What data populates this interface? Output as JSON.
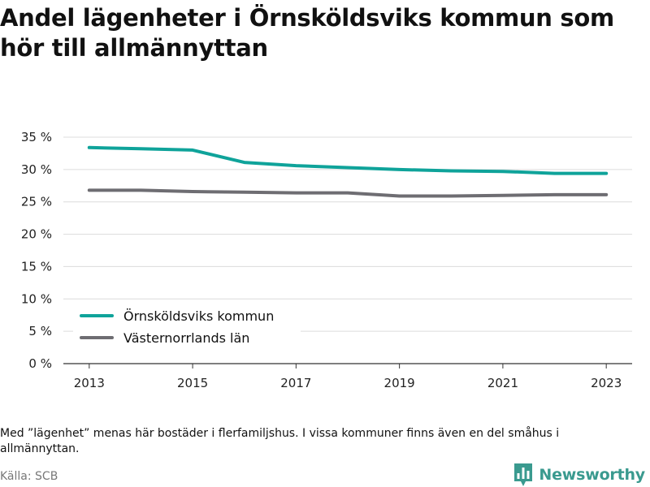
{
  "title": "Andel lägenheter i Örnsköldsviks kommun som hör till allmännyttan",
  "footnote": "Med ”lägenhet” menas här bostäder i flerfamiljshus. I vissa kommuner finns även en del småhus i allmännyttan.",
  "source": "Källa: SCB",
  "brand": {
    "name": "Newsworthy",
    "icon": "bar-chart-speech-bubble-icon",
    "color": "#3a9a8f"
  },
  "chart_data": {
    "type": "line",
    "title": "Andel lägenheter i Örnsköldsviks kommun som hör till allmännyttan",
    "xlabel": "",
    "ylabel": "",
    "x": [
      2013,
      2014,
      2015,
      2016,
      2017,
      2018,
      2019,
      2020,
      2021,
      2022,
      2023
    ],
    "xticks": [
      2013,
      2015,
      2017,
      2019,
      2021,
      2023
    ],
    "xtick_labels": [
      "2013",
      "2015",
      "2017",
      "2019",
      "2021",
      "2023"
    ],
    "xlim": [
      2012.5,
      2023.5
    ],
    "ylim": [
      0,
      35
    ],
    "yticks": [
      0,
      5,
      10,
      15,
      20,
      25,
      30,
      35
    ],
    "ytick_labels": [
      "0 %",
      "5 %",
      "10 %",
      "15 %",
      "20 %",
      "25 %",
      "30 %",
      "35 %"
    ],
    "grid": true,
    "legend_position": "bottom-left",
    "series": [
      {
        "name": "Örnsköldsviks kommun",
        "color": "#0fa39a",
        "values": [
          33.4,
          33.2,
          33.0,
          31.1,
          30.6,
          30.3,
          30.0,
          29.8,
          29.7,
          29.4,
          29.4
        ]
      },
      {
        "name": "Västernorrlands län",
        "color": "#6e6d72",
        "values": [
          26.8,
          26.8,
          26.6,
          26.5,
          26.4,
          26.4,
          25.9,
          25.9,
          26.0,
          26.1,
          26.1
        ]
      }
    ]
  }
}
